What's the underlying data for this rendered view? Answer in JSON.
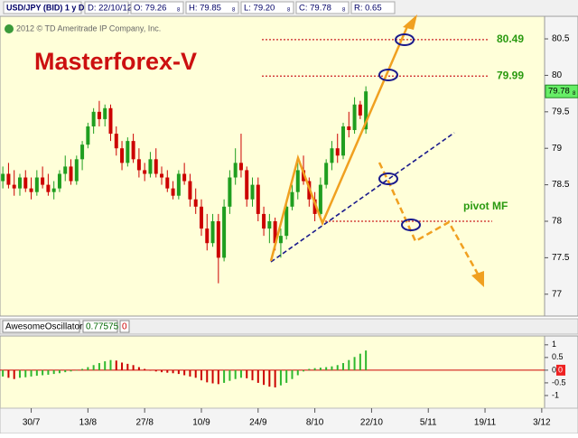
{
  "chart_data": [
    {
      "type": "candlestick",
      "symbol": "USD/JPY (BID) 1 y D",
      "header_items": [
        {
          "text": "D: 22/10/12"
        },
        {
          "text": "O: 79.26",
          "sub": "8"
        },
        {
          "text": "H: 79.85",
          "sub": "8"
        },
        {
          "text": "L: 79.20",
          "sub": "8"
        },
        {
          "text": "C: 79.78",
          "sub": "8"
        },
        {
          "text": "R: 0.65"
        }
      ],
      "copyright": "2012 © TD Ameritrade IP Company, Inc.",
      "title": "Masterforex-V",
      "up_color": "#1f9e1f",
      "down_color": "#cc0000",
      "categories": [
        null,
        null,
        null,
        null,
        null,
        "30/7",
        null,
        null,
        null,
        null,
        null,
        null,
        null,
        null,
        null,
        "13/8",
        null,
        null,
        null,
        null,
        null,
        null,
        null,
        null,
        null,
        "27/8",
        null,
        null,
        null,
        null,
        null,
        null,
        null,
        null,
        null,
        "10/9",
        null,
        null,
        null,
        null,
        null,
        null,
        null,
        null,
        null,
        "24/9",
        null,
        null,
        null,
        null,
        null,
        null,
        null,
        null,
        null,
        "8/10",
        null,
        null,
        null,
        null,
        null,
        null,
        null,
        null,
        null,
        "22/10",
        null,
        null,
        null,
        null,
        null,
        null,
        null,
        null,
        null,
        "5/11",
        null,
        null,
        null,
        null,
        null,
        null,
        null,
        null,
        null,
        "19/11",
        null,
        null,
        null,
        null,
        null,
        null,
        null,
        null,
        null,
        "3/12"
      ],
      "open": [
        78.55,
        78.65,
        78.5,
        78.45,
        78.6,
        78.45,
        78.4,
        78.6,
        78.5,
        78.4,
        78.45,
        78.65,
        78.75,
        78.55,
        78.85,
        79.05,
        79.3,
        79.5,
        79.4,
        79.55,
        79.2,
        79,
        78.8,
        79.1,
        78.85,
        78.7,
        78.65,
        78.85,
        78.65,
        78.6,
        78.45,
        78.35,
        78.65,
        78.55,
        78.3,
        78.2,
        77.9,
        77.7,
        78,
        77.5,
        78.2,
        78.6,
        78.8,
        78.7,
        78.3,
        78.5,
        78.1,
        77.9,
        78,
        77.7,
        77.8,
        78.2,
        78.4,
        78.7,
        78.55,
        78.3,
        78.1,
        78.5,
        78.8,
        79,
        78.9,
        79.3,
        79.25,
        79.6,
        79.26,
        null,
        null,
        null,
        null,
        null,
        null,
        null,
        null,
        null,
        null,
        null,
        null,
        null,
        null,
        null,
        null,
        null,
        null,
        null,
        null,
        null,
        null,
        null,
        null,
        null,
        null,
        null,
        null,
        null,
        null,
        null
      ],
      "high": [
        78.75,
        78.8,
        78.7,
        78.65,
        78.7,
        78.6,
        78.7,
        78.75,
        78.65,
        78.55,
        78.7,
        78.9,
        78.85,
        78.9,
        79.1,
        79.35,
        79.55,
        79.65,
        79.6,
        79.6,
        79.3,
        79.1,
        79.15,
        79.2,
        79,
        78.8,
        78.95,
        79,
        78.75,
        78.7,
        78.55,
        78.7,
        78.8,
        78.65,
        78.45,
        78.3,
        78.1,
        78.1,
        78.1,
        78.3,
        78.7,
        79,
        79.2,
        78.75,
        78.6,
        78.6,
        78.2,
        78.1,
        78.05,
        77.9,
        78.3,
        78.5,
        78.8,
        78.9,
        78.6,
        78.4,
        78.6,
        78.85,
        79.1,
        79.2,
        79.35,
        79.5,
        79.7,
        79.65,
        79.85,
        null,
        null,
        null,
        null,
        null,
        null,
        null,
        null,
        null,
        null,
        null,
        null,
        null,
        null,
        null,
        null,
        null,
        null,
        null,
        null,
        null,
        null,
        null,
        null,
        null,
        null,
        null,
        null,
        null,
        null,
        null
      ],
      "low": [
        78.45,
        78.45,
        78.35,
        78.35,
        78.4,
        78.3,
        78.35,
        78.45,
        78.35,
        78.3,
        78.4,
        78.55,
        78.5,
        78.5,
        78.7,
        79,
        79.2,
        79.3,
        79.3,
        79.1,
        78.9,
        78.7,
        78.75,
        78.8,
        78.6,
        78.55,
        78.6,
        78.6,
        78.5,
        78.4,
        78.3,
        78.3,
        78.5,
        78.2,
        78.1,
        77.8,
        77.6,
        77.65,
        77.15,
        77.45,
        78.1,
        78.5,
        78.6,
        78.2,
        78.2,
        78,
        77.8,
        77.7,
        77.6,
        77.5,
        77.75,
        78.15,
        78.3,
        78.5,
        78.2,
        78,
        78.05,
        78.45,
        78.7,
        78.8,
        78.85,
        79.15,
        79.2,
        79.4,
        79.2,
        null,
        null,
        null,
        null,
        null,
        null,
        null,
        null,
        null,
        null,
        null,
        null,
        null,
        null,
        null,
        null,
        null,
        null,
        null,
        null,
        null,
        null,
        null,
        null,
        null,
        null,
        null,
        null,
        null,
        null,
        null
      ],
      "close": [
        78.65,
        78.5,
        78.45,
        78.6,
        78.45,
        78.4,
        78.6,
        78.5,
        78.4,
        78.45,
        78.65,
        78.75,
        78.55,
        78.85,
        79.05,
        79.3,
        79.5,
        79.4,
        79.55,
        79.2,
        79,
        78.8,
        79.1,
        78.85,
        78.7,
        78.65,
        78.85,
        78.65,
        78.6,
        78.45,
        78.35,
        78.65,
        78.55,
        78.3,
        78.2,
        77.9,
        77.7,
        78,
        77.5,
        78.2,
        78.6,
        78.8,
        78.7,
        78.3,
        78.5,
        78.1,
        77.9,
        78,
        77.7,
        77.8,
        78.2,
        78.4,
        78.7,
        78.55,
        78.3,
        78.1,
        78.5,
        78.8,
        79,
        78.9,
        79.3,
        79.25,
        79.6,
        79.45,
        79.78,
        null,
        null,
        null,
        null,
        null,
        null,
        null,
        null,
        null,
        null,
        null,
        null,
        null,
        null,
        null,
        null,
        null,
        null,
        null,
        null,
        null,
        null,
        null,
        null,
        null,
        null,
        null,
        null,
        null,
        null,
        null
      ],
      "ylim": [
        76.7,
        80.81
      ],
      "yticks": [
        77,
        77.5,
        78,
        78.5,
        79,
        79.5,
        80,
        80.5
      ],
      "price_tag": {
        "value": 79.78,
        "label": "79.78",
        "sub": "8"
      },
      "levels": [
        {
          "value": 80.49,
          "label": "80.49"
        },
        {
          "value": 79.99,
          "label": "79.99"
        },
        {
          "value": 78,
          "label": "pivot MF"
        }
      ]
    },
    {
      "type": "bar",
      "name": "AwesomeOscillator",
      "current": 0.77575,
      "zero_label": "0",
      "up_color": "#2fb82f",
      "down_color": "#cc0000",
      "values": [
        -0.25,
        -0.3,
        -0.35,
        -0.3,
        -0.28,
        -0.25,
        -0.22,
        -0.2,
        -0.18,
        -0.15,
        -0.12,
        -0.08,
        -0.05,
        0,
        0.05,
        0.12,
        0.2,
        0.28,
        0.35,
        0.4,
        0.38,
        0.3,
        0.25,
        0.2,
        0.12,
        0.05,
        -0.02,
        -0.05,
        -0.08,
        -0.1,
        -0.12,
        -0.15,
        -0.2,
        -0.25,
        -0.3,
        -0.4,
        -0.48,
        -0.52,
        -0.55,
        -0.5,
        -0.42,
        -0.35,
        -0.3,
        -0.32,
        -0.4,
        -0.5,
        -0.58,
        -0.65,
        -0.68,
        -0.6,
        -0.5,
        -0.35,
        -0.2,
        -0.05,
        0.05,
        0.08,
        0.1,
        0.12,
        0.15,
        0.2,
        0.28,
        0.4,
        0.52,
        0.65,
        0.77575,
        null,
        null,
        null,
        null,
        null,
        null,
        null,
        null,
        null,
        null,
        null,
        null,
        null,
        null,
        null,
        null,
        null,
        null,
        null,
        null,
        null,
        null,
        null,
        null,
        null,
        null,
        null,
        null,
        null,
        null,
        null
      ],
      "ylim": [
        -1.5,
        1.35
      ],
      "yticks": [
        -1,
        -0.5,
        0,
        0.5,
        1
      ]
    }
  ]
}
